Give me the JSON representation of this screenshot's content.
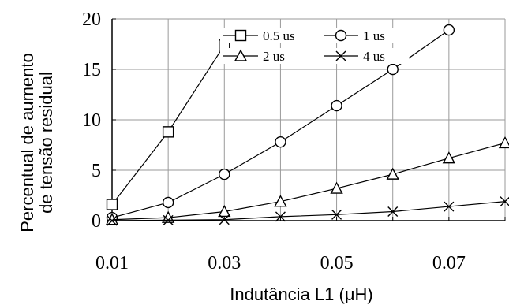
{
  "chart_data": {
    "type": "line",
    "title": "",
    "xlabel": "Indutância L1 (μH)",
    "ylabel_lines": [
      "Percentual de aumento",
      "de tensão residual"
    ],
    "xlim": [
      0.01,
      0.08
    ],
    "ylim": [
      0,
      20
    ],
    "x_ticks": [
      0.01,
      0.03,
      0.05,
      0.07
    ],
    "x_tick_labels": [
      "0.01",
      "0.03",
      "0.05",
      "0.07"
    ],
    "y_ticks": [
      0,
      5,
      10,
      15,
      20
    ],
    "y_tick_labels": [
      "0",
      "5",
      "10",
      "15",
      "20"
    ],
    "grid": true,
    "legend_placement": "top-center",
    "series": [
      {
        "name": "0.5 us",
        "marker": "square",
        "x": [
          0.01,
          0.02,
          0.03
        ],
        "y": [
          1.6,
          8.8,
          17.4
        ]
      },
      {
        "name": "1 us",
        "marker": "circle",
        "x": [
          0.01,
          0.02,
          0.03,
          0.04,
          0.05,
          0.06,
          0.07
        ],
        "y": [
          0.3,
          1.8,
          4.6,
          7.8,
          11.4,
          15.0,
          18.9
        ]
      },
      {
        "name": "2 us",
        "marker": "triangle",
        "x": [
          0.01,
          0.02,
          0.03,
          0.04,
          0.05,
          0.06,
          0.07,
          0.08
        ],
        "y": [
          0.1,
          0.3,
          0.9,
          1.9,
          3.2,
          4.6,
          6.2,
          7.7
        ]
      },
      {
        "name": "4 us",
        "marker": "x",
        "x": [
          0.01,
          0.02,
          0.03,
          0.04,
          0.05,
          0.06,
          0.07,
          0.08
        ],
        "y": [
          0.0,
          0.05,
          0.1,
          0.4,
          0.6,
          0.9,
          1.4,
          1.9
        ]
      }
    ]
  }
}
